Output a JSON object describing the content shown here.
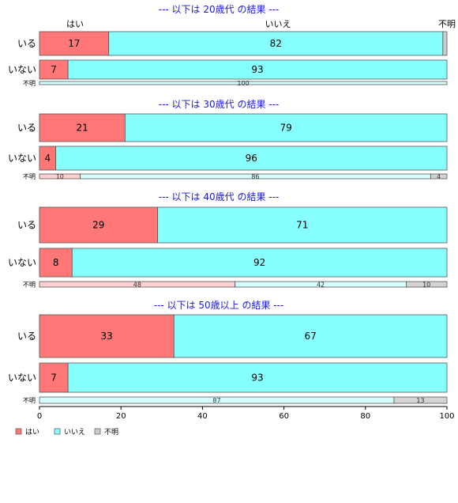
{
  "chart_data": {
    "type": "bar",
    "orientation": "horizontal",
    "stacked": true,
    "percent": true,
    "xlim": [
      0,
      100
    ],
    "xticks": [
      "0",
      "20",
      "40",
      "60",
      "80",
      "100"
    ],
    "legend": {
      "placement": "bottom-left",
      "items": [
        {
          "name": "はい",
          "color": "#ff7777"
        },
        {
          "name": "いいえ",
          "color": "#88ffff"
        },
        {
          "name": "不明",
          "color": "#cccccc"
        }
      ]
    },
    "top_labels": [
      "はい",
      "いいえ",
      "不明"
    ],
    "panels": [
      {
        "title": "--- 以下は 20歳代 の結果 ---",
        "rows": [
          {
            "label": "いる",
            "values": [
              17,
              82,
              1
            ],
            "labels": [
              "17",
              "82",
              ""
            ]
          },
          {
            "label": "いない",
            "values": [
              7,
              93,
              0
            ],
            "labels": [
              "7",
              "93",
              ""
            ]
          },
          {
            "label": "不明",
            "small": true,
            "values": [
              0,
              100,
              0
            ],
            "labels": [
              "",
              "100",
              ""
            ]
          }
        ]
      },
      {
        "title": "--- 以下は 30歳代 の結果 ---",
        "rows": [
          {
            "label": "いる",
            "values": [
              21,
              79,
              0
            ],
            "labels": [
              "21",
              "79",
              ""
            ]
          },
          {
            "label": "いない",
            "values": [
              4,
              96,
              0
            ],
            "labels": [
              "4",
              "96",
              ""
            ]
          },
          {
            "label": "不明",
            "small": true,
            "values": [
              10,
              86,
              4
            ],
            "labels": [
              "10",
              "86",
              "4"
            ]
          }
        ]
      },
      {
        "title": "--- 以下は 40歳代 の結果 ---",
        "rows": [
          {
            "label": "いる",
            "values": [
              29,
              71,
              0
            ],
            "labels": [
              "29",
              "71",
              ""
            ]
          },
          {
            "label": "いない",
            "values": [
              8,
              92,
              0
            ],
            "labels": [
              "8",
              "92",
              ""
            ]
          },
          {
            "label": "不明",
            "small": true,
            "values": [
              48,
              42,
              10
            ],
            "labels": [
              "48",
              "42",
              "10"
            ]
          }
        ]
      },
      {
        "title": "--- 以下は 50歳以上 の結果 ---",
        "rows": [
          {
            "label": "いる",
            "values": [
              33,
              67,
              0
            ],
            "labels": [
              "33",
              "67",
              ""
            ]
          },
          {
            "label": "いない",
            "values": [
              7,
              93,
              0
            ],
            "labels": [
              "7",
              "93",
              ""
            ]
          },
          {
            "label": "不明",
            "small": true,
            "values": [
              0,
              87,
              13
            ],
            "labels": [
              "",
              "87",
              "13"
            ]
          }
        ]
      }
    ]
  }
}
